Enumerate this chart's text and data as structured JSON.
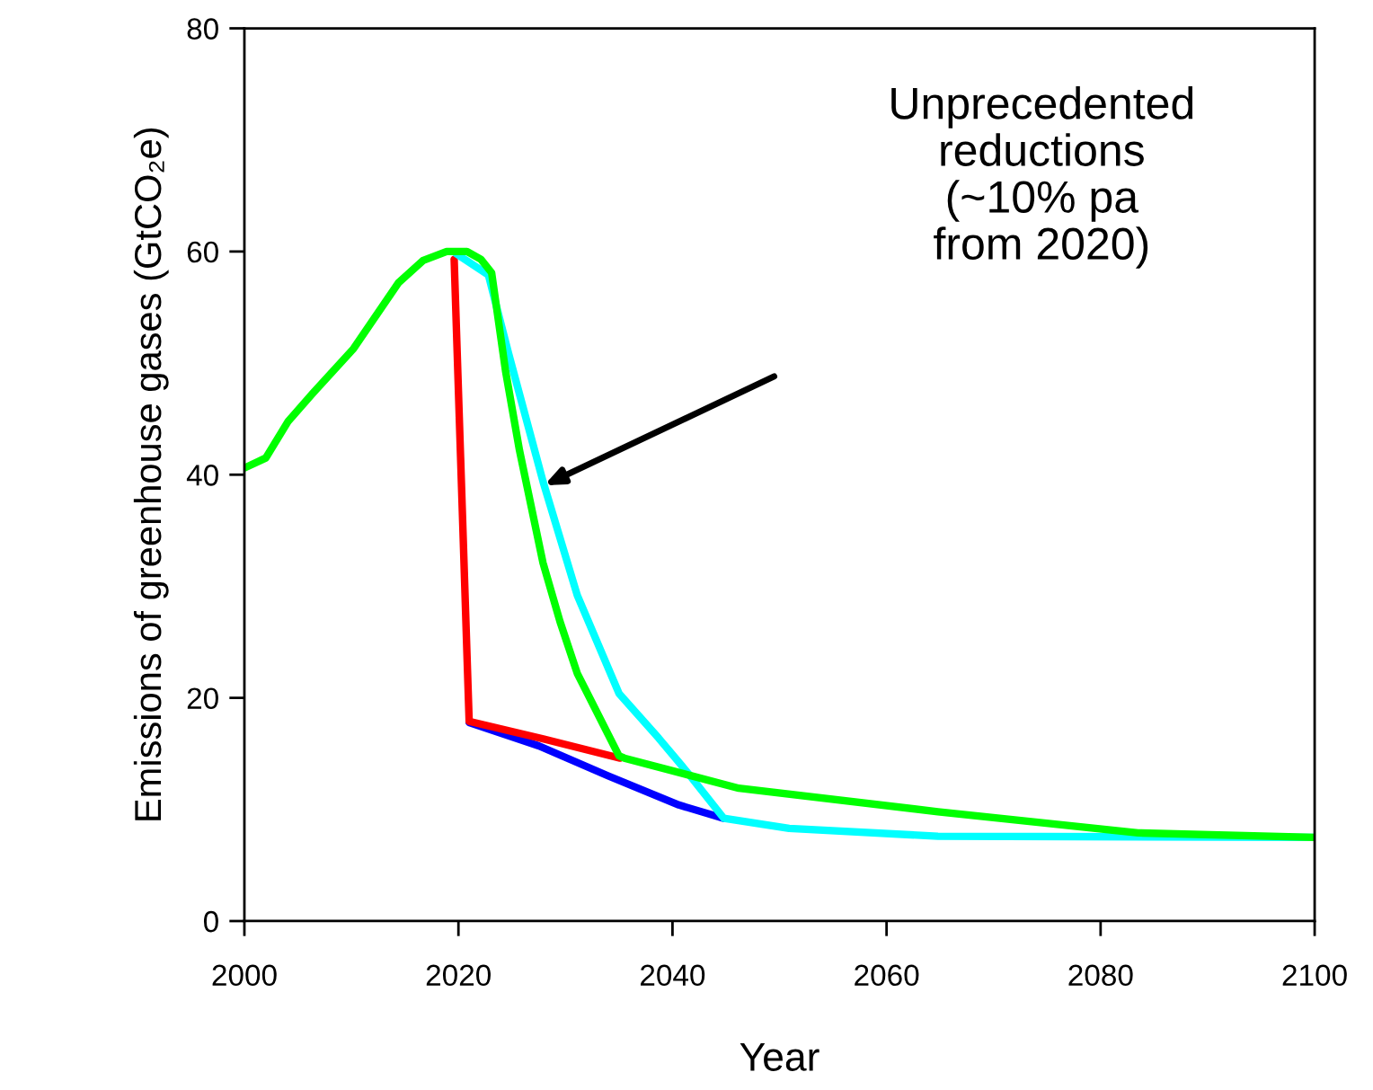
{
  "chart_data": {
    "type": "line",
    "xlabel": "Year",
    "ylabel": "Emissions of greenhouse gases (GtCO₂e)",
    "xlim": [
      2000,
      2100
    ],
    "xticks": [
      2000,
      2020,
      2040,
      2060,
      2080,
      2100
    ],
    "ylim": [
      0,
      80
    ],
    "yticks": [
      0,
      20,
      40,
      60,
      80
    ],
    "grid": false,
    "legend": false,
    "marker": "none",
    "line_style": "solid",
    "series": [
      {
        "color": "#0000ff",
        "x": [
          2021,
          2027.5,
          2034,
          2040.6,
          2044.8
        ],
        "values": [
          17.8,
          15.7,
          13.0,
          10.4,
          9.2
        ]
      },
      {
        "color": "#ff0000",
        "x": [
          2019.6,
          2021,
          2028,
          2035.1
        ],
        "values": [
          59.3,
          17.9,
          16.3,
          14.6
        ]
      },
      {
        "color": "#00ffff",
        "x": [
          2019.8,
          2022.8,
          2024.7,
          2027.9,
          2031.1,
          2035,
          2038.7,
          2041.5,
          2044.8,
          2050.9,
          2064.8,
          2100
        ],
        "values": [
          59.8,
          57.9,
          50.8,
          39.4,
          29.2,
          20.4,
          16.4,
          13.2,
          9.2,
          8.3,
          7.6,
          7.5
        ]
      },
      {
        "color": "#00ff00",
        "x": [
          2000,
          2002,
          2004.1,
          2006.4,
          2010.2,
          2014.4,
          2016.7,
          2018.9,
          2020.8,
          2022.1,
          2023.1,
          2024.4,
          2025.7,
          2027.9,
          2029.5,
          2031.1,
          2035,
          2035.5,
          2046.2,
          2064.8,
          2083.5,
          2100
        ],
        "values": [
          40.6,
          41.5,
          44.8,
          47.3,
          51.3,
          57.2,
          59.2,
          60.0,
          60.0,
          59.3,
          58.1,
          49.3,
          42.2,
          32.1,
          26.8,
          22.2,
          14.8,
          14.6,
          11.9,
          9.8,
          7.9,
          7.5
        ]
      }
    ],
    "annotations": [
      "Unprecedented\nreductions\n(~10% pa\nfrom 2020)"
    ]
  }
}
